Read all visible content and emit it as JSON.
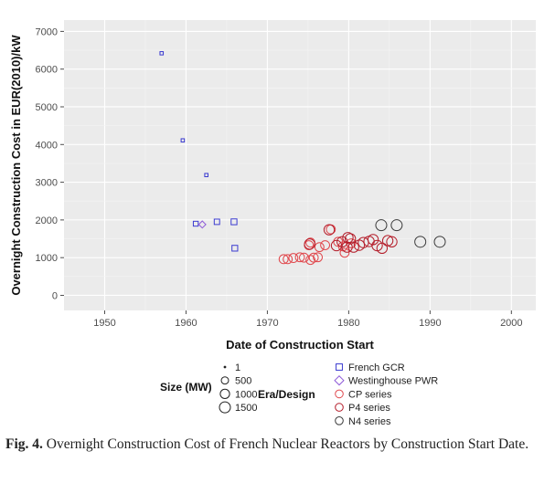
{
  "chart_data": {
    "type": "scatter",
    "xlabel": "Date of Construction Start",
    "ylabel": "Overnight Construction Cost in EUR(2010)/kW",
    "xlim": [
      1945,
      2003
    ],
    "ylim": [
      -400,
      7300
    ],
    "xticks": [
      1950,
      1960,
      1970,
      1980,
      1990,
      2000
    ],
    "yticks": [
      0,
      1000,
      2000,
      3000,
      4000,
      5000,
      6000,
      7000
    ],
    "grid": true,
    "background": "#ebebeb",
    "size_legend": {
      "title": "Size (MW)",
      "entries": [
        {
          "label": "1",
          "value": 1
        },
        {
          "label": "500",
          "value": 500
        },
        {
          "label": "1000",
          "value": 1000
        },
        {
          "label": "1500",
          "value": 1500
        }
      ]
    },
    "design_legend": {
      "title": "Era/Design",
      "entries": [
        {
          "label": "French GCR",
          "shape": "square",
          "color": "#3a3ad0"
        },
        {
          "label": "Westinghouse PWR",
          "shape": "diamond",
          "color": "#8e5ad8"
        },
        {
          "label": "CP series",
          "shape": "circle",
          "color": "#e0474c"
        },
        {
          "label": "P4 series",
          "shape": "circle",
          "color": "#b41d2a"
        },
        {
          "label": "N4 series",
          "shape": "circle",
          "color": "#3a3a3a"
        }
      ]
    },
    "series": [
      {
        "name": "French GCR",
        "shape": "square",
        "color": "#3a3ad0",
        "points": [
          [
            1957,
            6420,
            70
          ],
          [
            1959.6,
            4110,
            70
          ],
          [
            1962.5,
            3190,
            70
          ],
          [
            1961.2,
            1900,
            300
          ],
          [
            1963.8,
            1950,
            400
          ],
          [
            1965.9,
            1950,
            500
          ],
          [
            1966,
            1250,
            480
          ]
        ]
      },
      {
        "name": "Westinghouse PWR",
        "shape": "diamond",
        "color": "#8e5ad8",
        "points": [
          [
            1962,
            1880,
            300
          ]
        ]
      },
      {
        "name": "CP series",
        "shape": "circle",
        "color": "#e0474c",
        "points": [
          [
            1972,
            960,
            900
          ],
          [
            1972.5,
            960,
            900
          ],
          [
            1973.2,
            990,
            900
          ],
          [
            1974,
            1010,
            900
          ],
          [
            1974.5,
            1000,
            900
          ],
          [
            1975.3,
            940,
            900
          ],
          [
            1975.7,
            1000,
            900
          ],
          [
            1976.2,
            1010,
            900
          ],
          [
            1975.1,
            1330,
            900
          ],
          [
            1975.3,
            1400,
            900
          ],
          [
            1976.4,
            1280,
            900
          ],
          [
            1977.1,
            1330,
            900
          ],
          [
            1977.8,
            1750,
            900
          ],
          [
            1978.7,
            1420,
            900
          ],
          [
            1979.3,
            1300,
            900
          ],
          [
            1979.5,
            1130,
            900
          ],
          [
            1980.3,
            1380,
            900
          ]
        ]
      },
      {
        "name": "P4 series",
        "shape": "circle",
        "color": "#b41d2a",
        "points": [
          [
            1975.2,
            1360,
            1300
          ],
          [
            1977.6,
            1740,
            1300
          ],
          [
            1978.5,
            1320,
            1300
          ],
          [
            1979.2,
            1420,
            1300
          ],
          [
            1979.8,
            1280,
            1300
          ],
          [
            1980.2,
            1500,
            1300
          ],
          [
            1979.9,
            1530,
            1300
          ],
          [
            1980.6,
            1280,
            1300
          ],
          [
            1981.3,
            1330,
            1300
          ],
          [
            1981.8,
            1400,
            1300
          ],
          [
            1982.5,
            1430,
            1300
          ],
          [
            1983,
            1480,
            1300
          ],
          [
            1983.5,
            1320,
            1300
          ],
          [
            1984.1,
            1250,
            1300
          ],
          [
            1984.8,
            1450,
            1300
          ],
          [
            1985.3,
            1420,
            1300
          ]
        ]
      },
      {
        "name": "N4 series",
        "shape": "circle",
        "color": "#3a3a3a",
        "points": [
          [
            1984,
            1860,
            1500
          ],
          [
            1985.9,
            1860,
            1500
          ],
          [
            1988.8,
            1420,
            1500
          ],
          [
            1991.2,
            1420,
            1500
          ]
        ]
      }
    ]
  },
  "caption": {
    "label": "Fig. 4.",
    "text": "Overnight Construction Cost of French Nuclear Reactors by Construction Start Date."
  }
}
